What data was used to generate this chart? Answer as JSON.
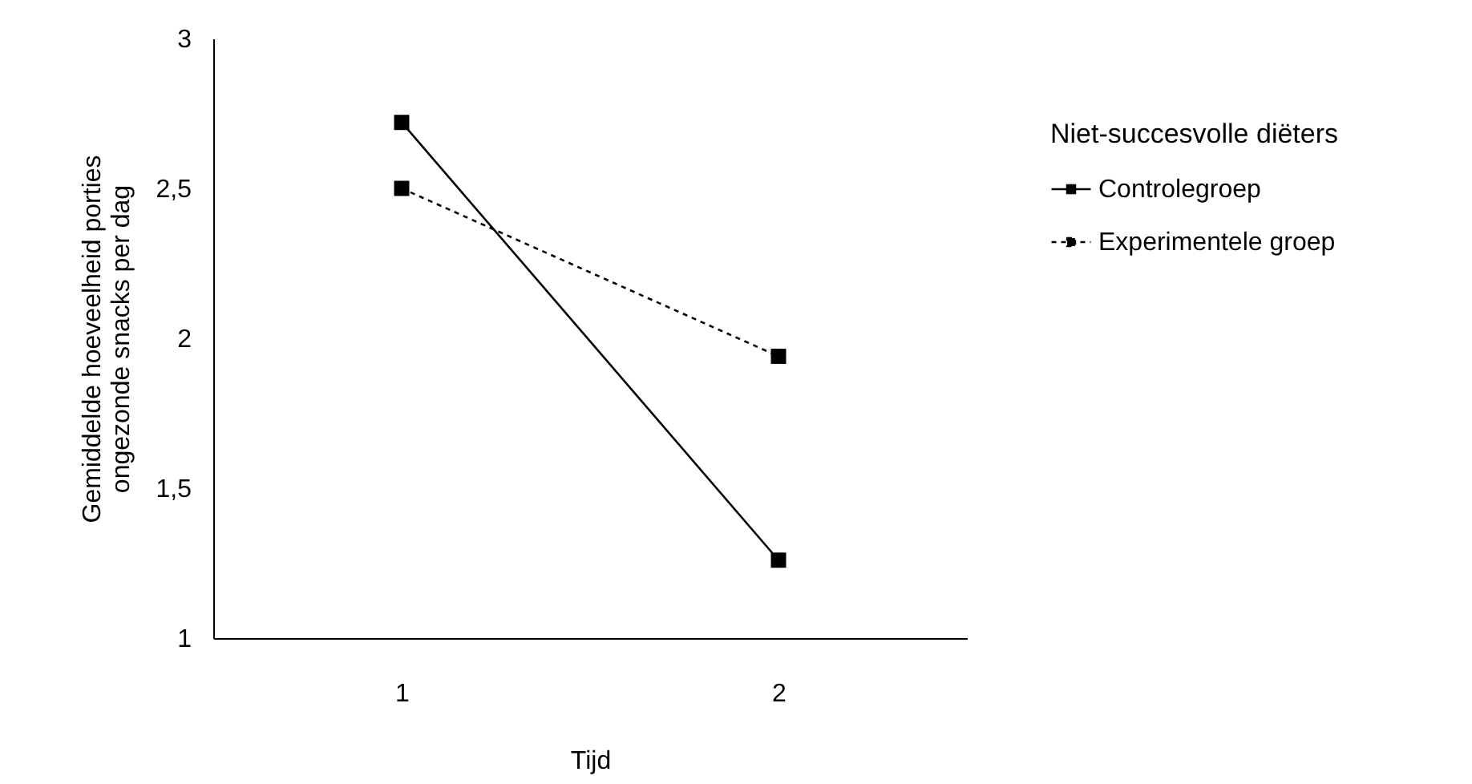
{
  "chart_data": {
    "type": "line",
    "xlabel": "Tijd",
    "ylabel": "Gemiddelde hoeveelheid porties ongezonde snacks per dag",
    "legend_title": "Niet-succesvolle diëters",
    "categories": [
      "1",
      "2"
    ],
    "series": [
      {
        "name": "Controlegroep",
        "color": "#000000",
        "line_style": "solid",
        "values": [
          2.72,
          1.26
        ]
      },
      {
        "name": "Experimentele groep",
        "color": "#000000",
        "line_style": "dotted",
        "values": [
          2.5,
          1.94
        ]
      }
    ],
    "ylim": [
      1,
      3
    ],
    "yticks": [
      1,
      {
        "value": 1.5,
        "label": "1,5"
      },
      2,
      {
        "value": 2.5,
        "label": "2,5"
      },
      3
    ],
    "grid": false,
    "legend": "right",
    "marker": "square"
  }
}
